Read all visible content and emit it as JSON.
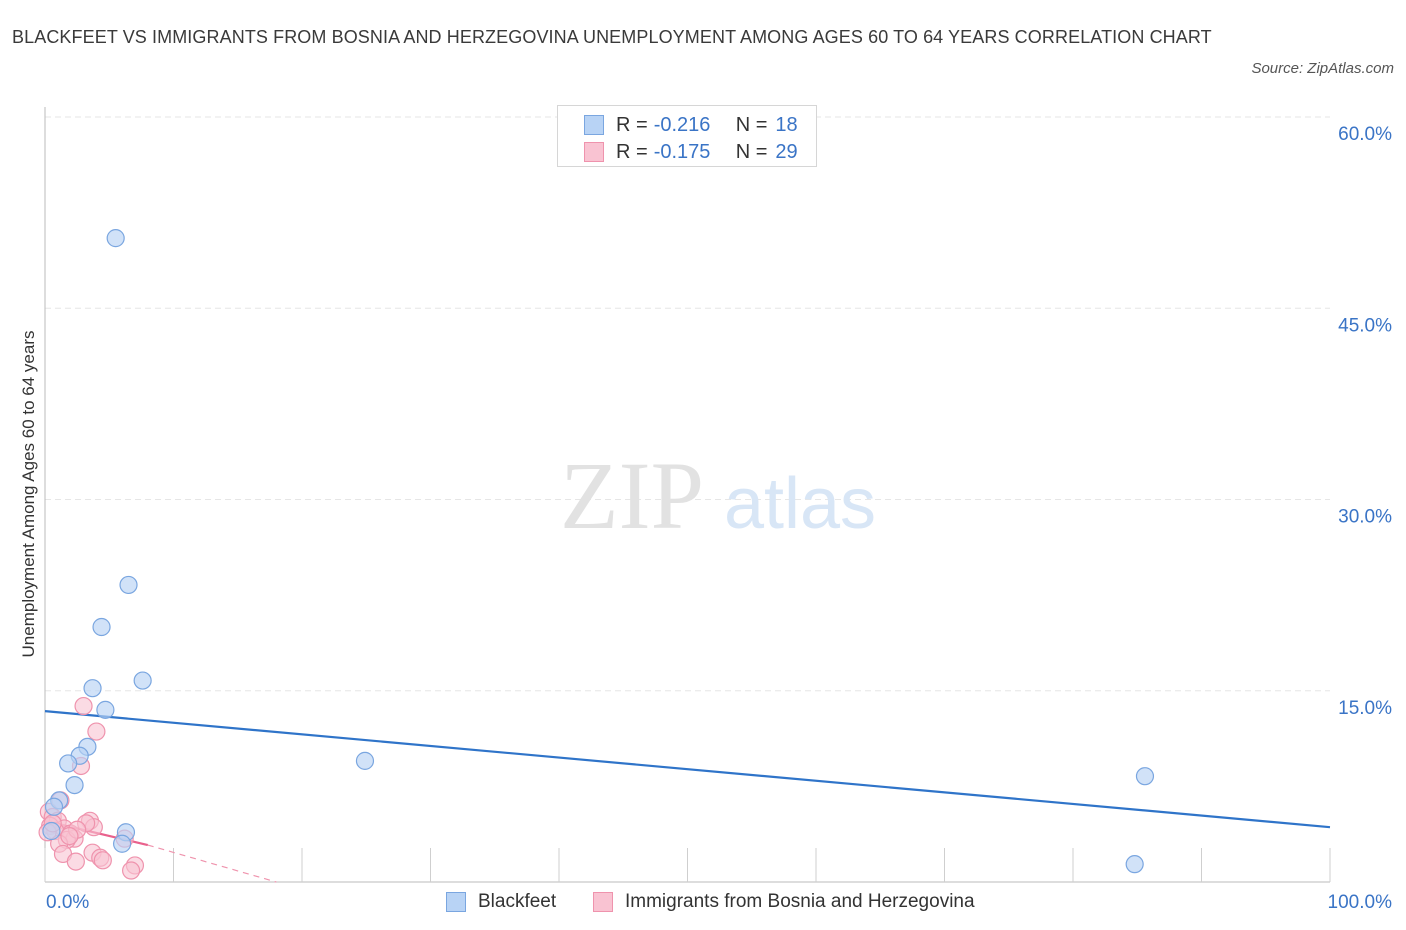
{
  "title": "BLACKFEET VS IMMIGRANTS FROM BOSNIA AND HERZEGOVINA UNEMPLOYMENT AMONG AGES 60 TO 64 YEARS CORRELATION CHART",
  "source": "Source: ZipAtlas.com",
  "watermark": {
    "zip": "ZIP",
    "atlas": "atlas"
  },
  "colors": {
    "blue_fill": "#b8d3f5",
    "blue_stroke": "#7aa6e0",
    "blue_line": "#2f74c9",
    "pink_fill": "#f9c3d2",
    "pink_stroke": "#ef93ad",
    "pink_line": "#e9618c",
    "axis_label": "#3a74c6",
    "grid": "#e6e6e6"
  },
  "legend": {
    "rows": [
      {
        "r_label": "R =",
        "r_value": "-0.216",
        "n_label": "N =",
        "n_value": "18"
      },
      {
        "r_label": "R =",
        "r_value": "-0.175",
        "n_label": "N =",
        "n_value": "29"
      }
    ]
  },
  "chart_data": {
    "type": "scatter",
    "title": "BLACKFEET VS IMMIGRANTS FROM BOSNIA AND HERZEGOVINA UNEMPLOYMENT AMONG AGES 60 TO 64 YEARS CORRELATION CHART",
    "xlabel": "",
    "ylabel": "Unemployment Among Ages 60 to 64 years",
    "xlim": [
      0,
      100
    ],
    "ylim": [
      0,
      60
    ],
    "x_tick_labels": [
      "0.0%",
      "100.0%"
    ],
    "y_ticks": [
      {
        "value": 15,
        "label": "15.0%"
      },
      {
        "value": 30,
        "label": "30.0%"
      },
      {
        "value": 45,
        "label": "45.0%"
      },
      {
        "value": 60,
        "label": "60.0%"
      }
    ],
    "series": [
      {
        "name": "Blackfeet",
        "r": -0.216,
        "n": 18,
        "points": [
          [
            5.5,
            50.5
          ],
          [
            6.5,
            23.3
          ],
          [
            4.4,
            20.0
          ],
          [
            7.6,
            15.8
          ],
          [
            3.7,
            15.2
          ],
          [
            4.7,
            13.5
          ],
          [
            3.3,
            10.6
          ],
          [
            2.7,
            9.9
          ],
          [
            1.8,
            9.3
          ],
          [
            24.9,
            9.5
          ],
          [
            2.3,
            7.6
          ],
          [
            1.1,
            6.4
          ],
          [
            0.7,
            5.9
          ],
          [
            6.3,
            3.9
          ],
          [
            6.0,
            3.0
          ],
          [
            0.5,
            4.0
          ],
          [
            85.6,
            8.3
          ],
          [
            84.8,
            1.4
          ]
        ],
        "trend": {
          "x0": 0,
          "y0": 13.4,
          "x1": 100,
          "y1": 4.3
        }
      },
      {
        "name": "Immigrants from Bosnia and Herzegovina",
        "r": -0.175,
        "n": 29,
        "points": [
          [
            3.0,
            13.8
          ],
          [
            4.0,
            11.8
          ],
          [
            2.8,
            9.1
          ],
          [
            1.2,
            6.4
          ],
          [
            0.3,
            5.5
          ],
          [
            0.6,
            5.1
          ],
          [
            1.0,
            4.8
          ],
          [
            0.4,
            4.4
          ],
          [
            1.5,
            4.2
          ],
          [
            0.8,
            4.0
          ],
          [
            0.2,
            3.9
          ],
          [
            2.0,
            3.8
          ],
          [
            2.3,
            3.4
          ],
          [
            1.7,
            3.3
          ],
          [
            1.1,
            3.0
          ],
          [
            3.5,
            4.8
          ],
          [
            3.8,
            4.3
          ],
          [
            3.2,
            4.6
          ],
          [
            2.5,
            4.1
          ],
          [
            1.9,
            3.6
          ],
          [
            6.2,
            3.4
          ],
          [
            3.7,
            2.3
          ],
          [
            1.4,
            2.2
          ],
          [
            4.3,
            1.9
          ],
          [
            4.5,
            1.7
          ],
          [
            2.4,
            1.6
          ],
          [
            7.0,
            1.3
          ],
          [
            6.7,
            0.9
          ],
          [
            0.6,
            4.6
          ]
        ],
        "trend": {
          "x0": 0,
          "y0": 4.8,
          "x1": 8.0,
          "y1": 2.9
        },
        "trend_extension": {
          "x0": 8.0,
          "y0": 2.9,
          "x1": 18.0,
          "y1": 0.0
        }
      }
    ]
  }
}
